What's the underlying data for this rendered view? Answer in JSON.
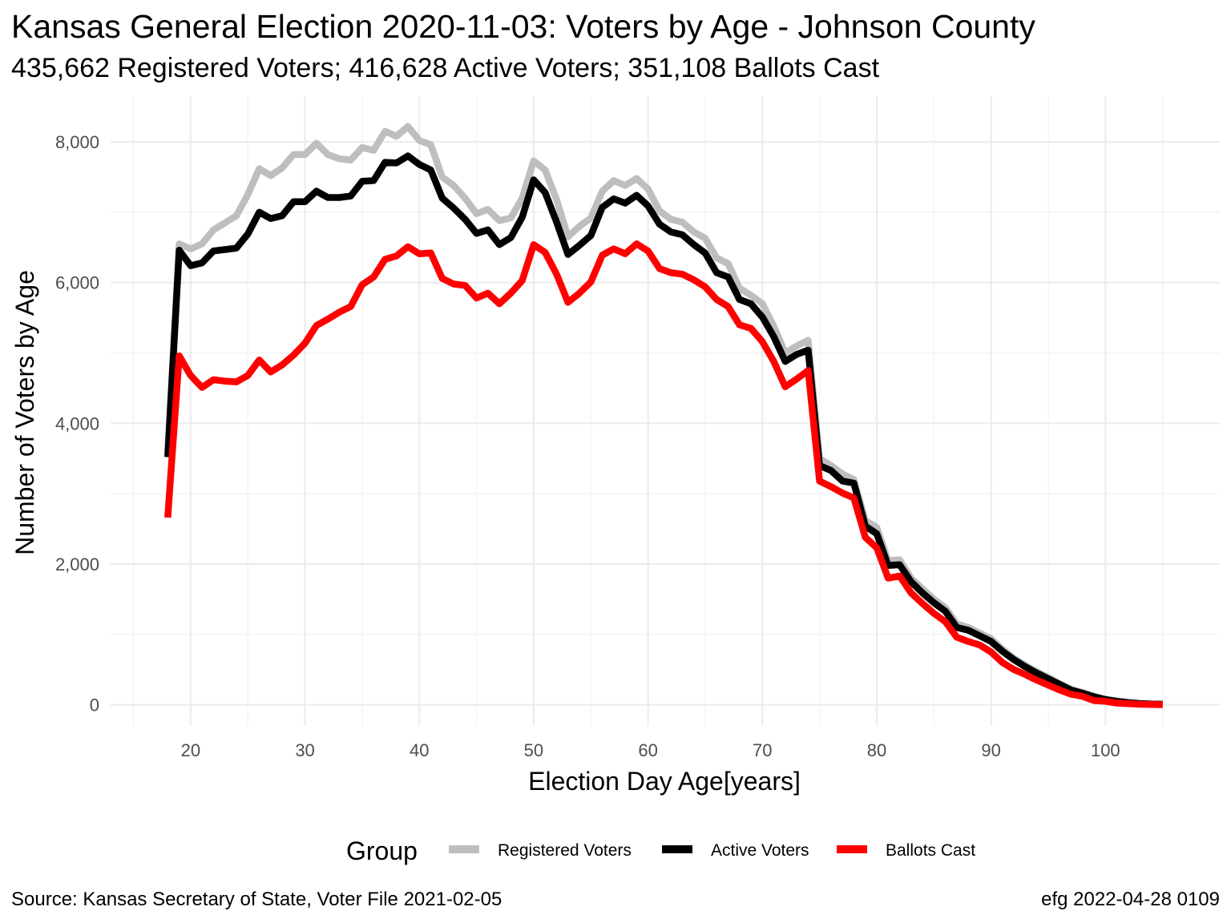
{
  "chart_data": {
    "type": "line",
    "title": "Kansas General Election 2020-11-03:  Voters by Age - Johnson County",
    "subtitle": "435,662 Registered Voters; 416,628 Active Voters; 351,108 Ballots Cast",
    "xlabel": "Election Day Age[years]",
    "ylabel": "Number of Voters by Age",
    "xlim": [
      13,
      110
    ],
    "ylim": [
      -300,
      8650
    ],
    "x_ticks": [
      20,
      30,
      40,
      50,
      60,
      70,
      80,
      90,
      100
    ],
    "y_ticks": [
      0,
      2000,
      4000,
      6000,
      8000
    ],
    "y_tick_labels": [
      "0",
      "2,000",
      "4,000",
      "6,000",
      "8,000"
    ],
    "grid": true,
    "legend_title": "Group",
    "legend_position": "bottom",
    "x": [
      18,
      19,
      20,
      21,
      22,
      23,
      24,
      25,
      26,
      27,
      28,
      29,
      30,
      31,
      32,
      33,
      34,
      35,
      36,
      37,
      38,
      39,
      40,
      41,
      42,
      43,
      44,
      45,
      46,
      47,
      48,
      49,
      50,
      51,
      52,
      53,
      54,
      55,
      56,
      57,
      58,
      59,
      60,
      61,
      62,
      63,
      64,
      65,
      66,
      67,
      68,
      69,
      70,
      71,
      72,
      73,
      74,
      75,
      76,
      77,
      78,
      79,
      80,
      81,
      82,
      83,
      84,
      85,
      86,
      87,
      88,
      89,
      90,
      91,
      92,
      93,
      94,
      95,
      96,
      97,
      98,
      99,
      100,
      101,
      102,
      103,
      104,
      105
    ],
    "series": [
      {
        "name": "Registered Voters",
        "color": "#bebebe",
        "values": [
          3600,
          6550,
          6480,
          6550,
          6750,
          6850,
          6950,
          7250,
          7620,
          7520,
          7630,
          7820,
          7820,
          7980,
          7820,
          7760,
          7740,
          7920,
          7880,
          8150,
          8080,
          8220,
          8020,
          7960,
          7500,
          7380,
          7200,
          6980,
          7040,
          6880,
          6920,
          7200,
          7730,
          7600,
          7180,
          6650,
          6800,
          6920,
          7300,
          7450,
          7380,
          7480,
          7330,
          7020,
          6900,
          6860,
          6720,
          6630,
          6350,
          6270,
          5920,
          5820,
          5700,
          5380,
          5000,
          5100,
          5180,
          3500,
          3400,
          3280,
          3200,
          2620,
          2520,
          2050,
          2060,
          1800,
          1650,
          1500,
          1380,
          1150,
          1100,
          1020,
          940,
          790,
          660,
          560,
          470,
          390,
          300,
          220,
          175,
          120,
          80,
          55,
          35,
          20,
          12,
          8
        ]
      },
      {
        "name": "Active Voters",
        "color": "#000000",
        "values": [
          3520,
          6460,
          6240,
          6280,
          6450,
          6470,
          6490,
          6690,
          7000,
          6910,
          6950,
          7150,
          7150,
          7300,
          7210,
          7210,
          7230,
          7440,
          7450,
          7710,
          7700,
          7800,
          7680,
          7600,
          7200,
          7060,
          6900,
          6700,
          6750,
          6540,
          6640,
          6930,
          7460,
          7280,
          6860,
          6400,
          6530,
          6670,
          7070,
          7190,
          7130,
          7240,
          7090,
          6830,
          6720,
          6680,
          6540,
          6420,
          6140,
          6080,
          5760,
          5700,
          5510,
          5230,
          4880,
          4980,
          5040,
          3400,
          3330,
          3180,
          3150,
          2540,
          2430,
          1980,
          1990,
          1750,
          1590,
          1450,
          1330,
          1100,
          1060,
          980,
          900,
          760,
          640,
          540,
          450,
          370,
          290,
          210,
          165,
          115,
          75,
          50,
          30,
          18,
          10,
          7
        ]
      },
      {
        "name": "Ballots Cast",
        "color": "#ff0000",
        "values": [
          2660,
          4960,
          4680,
          4510,
          4620,
          4600,
          4590,
          4680,
          4900,
          4730,
          4830,
          4970,
          5140,
          5390,
          5480,
          5580,
          5660,
          5970,
          6080,
          6330,
          6380,
          6510,
          6410,
          6420,
          6060,
          5980,
          5960,
          5780,
          5850,
          5700,
          5850,
          6030,
          6540,
          6430,
          6120,
          5720,
          5850,
          6010,
          6390,
          6480,
          6410,
          6550,
          6450,
          6200,
          6140,
          6120,
          6040,
          5940,
          5760,
          5660,
          5400,
          5350,
          5160,
          4880,
          4520,
          4630,
          4750,
          3180,
          3100,
          3010,
          2940,
          2380,
          2230,
          1800,
          1830,
          1590,
          1440,
          1300,
          1180,
          960,
          900,
          850,
          750,
          600,
          500,
          430,
          350,
          280,
          210,
          150,
          120,
          60,
          50,
          25,
          15,
          8,
          4,
          2
        ]
      }
    ]
  },
  "caption": {
    "source": "Source:  Kansas Secretary of State, Voter File  2021-02-05",
    "credit": "efg 2022-04-28 0109"
  }
}
